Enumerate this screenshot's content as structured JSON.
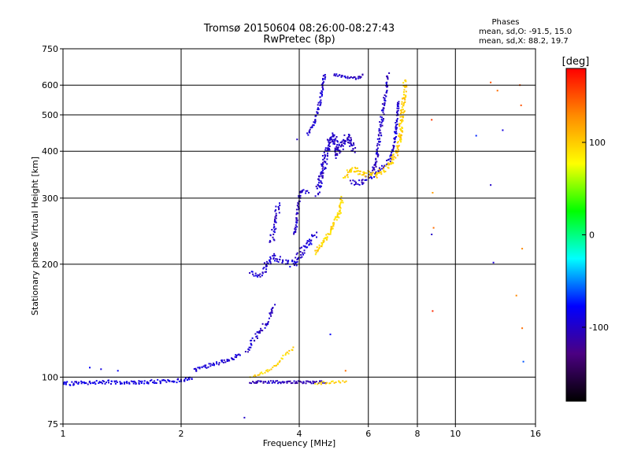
{
  "chart_data": {
    "type": "scatter",
    "title": "Tromsø 20150604 08:26:00-08:27:43",
    "subtitle": "RwPretec (8p)",
    "phase_note": {
      "heading": "Phases",
      "line_o": "mean, sd,O: -91.5, 15.0",
      "line_x": "mean, sd,X:  88.2, 19.7"
    },
    "xlabel": "Frequency [MHz]",
    "ylabel": "Stationary phase Virtual Height [km]",
    "x_scale": "log",
    "y_scale": "log",
    "xlim": [
      1,
      16
    ],
    "ylim": [
      75,
      750
    ],
    "x_ticks": [
      1,
      2,
      4,
      6,
      8,
      10,
      16
    ],
    "y_ticks": [
      75,
      100,
      200,
      300,
      400,
      500,
      600,
      750
    ],
    "grid": true,
    "colorbar": {
      "label": "[deg]",
      "range": [
        -180,
        180
      ],
      "ticks": [
        100,
        0,
        -100
      ],
      "colors": [
        "#000000",
        "#4b0082",
        "#0000ff",
        "#00ffff",
        "#00ff00",
        "#ffff00",
        "#ff8c00",
        "#ff0000"
      ]
    },
    "series": [
      {
        "traces": [
          {
            "phase": -90,
            "spread": 3,
            "density": 3,
            "points": [
              [
                1,
                96
              ],
              [
                1.3,
                97
              ],
              [
                1.6,
                97
              ],
              [
                2.0,
                98
              ],
              [
                2.15,
                99
              ]
            ]
          },
          {
            "phase": -95,
            "spread": 3,
            "density": 3,
            "points": [
              [
                2.15,
                104
              ],
              [
                2.4,
                108
              ],
              [
                2.7,
                112
              ],
              [
                2.85,
                115
              ]
            ]
          },
          {
            "phase": -100,
            "spread": 5,
            "density": 3,
            "points": [
              [
                2.95,
                118
              ],
              [
                3.1,
                128
              ],
              [
                3.3,
                140
              ],
              [
                3.45,
                155
              ]
            ]
          },
          {
            "phase": -95,
            "spread": 3,
            "density": 3,
            "points": [
              [
                3.0,
                190
              ],
              [
                3.15,
                186
              ],
              [
                3.3,
                190
              ]
            ]
          },
          {
            "phase": -95,
            "spread": 6,
            "density": 4,
            "points": [
              [
                3.25,
                195
              ],
              [
                3.45,
                210
              ],
              [
                3.6,
                205
              ],
              [
                3.85,
                200
              ],
              [
                4.0,
                210
              ],
              [
                4.2,
                225
              ],
              [
                4.4,
                240
              ]
            ]
          },
          {
            "phase": -100,
            "spread": 6,
            "density": 3,
            "points": [
              [
                3.4,
                230
              ],
              [
                3.5,
                270
              ],
              [
                3.55,
                290
              ]
            ]
          },
          {
            "phase": -100,
            "spread": 3,
            "density": 3,
            "points": [
              [
                3.9,
                240
              ],
              [
                4.0,
                300
              ],
              [
                4.05,
                315
              ],
              [
                4.25,
                310
              ]
            ]
          },
          {
            "phase": -100,
            "spread": 6,
            "density": 5,
            "points": [
              [
                4.45,
                310
              ],
              [
                4.6,
                360
              ],
              [
                4.75,
                420
              ],
              [
                4.9,
                440
              ],
              [
                5.0,
                390
              ],
              [
                5.15,
                420
              ],
              [
                5.35,
                440
              ],
              [
                5.5,
                400
              ]
            ]
          },
          {
            "phase": -95,
            "spread": 3,
            "density": 3,
            "points": [
              [
                4.2,
                440
              ],
              [
                4.4,
                480
              ],
              [
                4.55,
                560
              ],
              [
                4.65,
                650
              ]
            ]
          },
          {
            "phase": -100,
            "spread": 2,
            "density": 3,
            "points": [
              [
                4.9,
                640
              ],
              [
                5.3,
                630
              ],
              [
                5.6,
                625
              ],
              [
                5.85,
                640
              ]
            ]
          },
          {
            "phase": -100,
            "spread": 4,
            "density": 3,
            "points": [
              [
                5.4,
                330
              ],
              [
                5.8,
                330
              ],
              [
                6.1,
                345
              ],
              [
                6.3,
                380
              ],
              [
                6.45,
                460
              ],
              [
                6.6,
                560
              ],
              [
                6.75,
                640
              ]
            ]
          },
          {
            "phase": -95,
            "spread": 3,
            "density": 3,
            "points": [
              [
                6.1,
                340
              ],
              [
                6.5,
                360
              ],
              [
                6.8,
                380
              ],
              [
                7.0,
                420
              ],
              [
                7.15,
                550
              ]
            ]
          },
          {
            "phase": -105,
            "spread": 2,
            "density": 3,
            "points": [
              [
                3.0,
                97
              ],
              [
                3.4,
                97
              ],
              [
                3.8,
                97
              ],
              [
                4.3,
                97
              ],
              [
                4.7,
                97
              ]
            ]
          }
        ]
      },
      {
        "traces": [
          {
            "phase": 95,
            "spread": 4,
            "density": 4,
            "points": [
              [
                4.4,
                215
              ],
              [
                4.55,
                225
              ],
              [
                4.75,
                240
              ],
              [
                4.9,
                255
              ],
              [
                5.05,
                275
              ],
              [
                5.15,
                300
              ]
            ]
          },
          {
            "phase": 100,
            "spread": 5,
            "density": 4,
            "points": [
              [
                5.2,
                340
              ],
              [
                5.5,
                360
              ],
              [
                5.8,
                350
              ],
              [
                6.2,
                345
              ],
              [
                6.6,
                355
              ],
              [
                6.9,
                375
              ],
              [
                7.2,
                420
              ],
              [
                7.4,
                560
              ],
              [
                7.45,
                620
              ]
            ]
          },
          {
            "phase": 95,
            "spread": 2,
            "density": 2,
            "points": [
              [
                3.05,
                100
              ],
              [
                3.4,
                105
              ],
              [
                3.7,
                115
              ],
              [
                3.9,
                120
              ]
            ]
          },
          {
            "phase": 95,
            "spread": 2,
            "density": 2,
            "points": [
              [
                4.4,
                96
              ],
              [
                4.8,
                97
              ],
              [
                5.3,
                97
              ]
            ]
          }
        ]
      }
    ],
    "isolated_points": [
      [
        1.17,
        106,
        -80
      ],
      [
        1.25,
        105,
        -90
      ],
      [
        1.38,
        104,
        -80
      ],
      [
        2.9,
        78,
        -100
      ],
      [
        3.0,
        100,
        85
      ],
      [
        4.8,
        130,
        -80
      ],
      [
        5.25,
        104,
        140
      ],
      [
        3.95,
        430,
        -100
      ],
      [
        8.7,
        485,
        160
      ],
      [
        8.75,
        310,
        120
      ],
      [
        8.8,
        250,
        140
      ],
      [
        8.7,
        240,
        -100
      ],
      [
        8.75,
        150,
        165
      ],
      [
        11.3,
        440,
        -70
      ],
      [
        12.3,
        610,
        150
      ],
      [
        12.3,
        325,
        -100
      ],
      [
        12.8,
        580,
        140
      ],
      [
        13.2,
        455,
        -90
      ],
      [
        12.5,
        202,
        -95
      ],
      [
        14.6,
        600,
        150
      ],
      [
        14.7,
        530,
        150
      ],
      [
        14.8,
        220,
        130
      ],
      [
        14.3,
        165,
        130
      ],
      [
        14.8,
        135,
        140
      ],
      [
        14.9,
        110,
        -60
      ]
    ]
  }
}
